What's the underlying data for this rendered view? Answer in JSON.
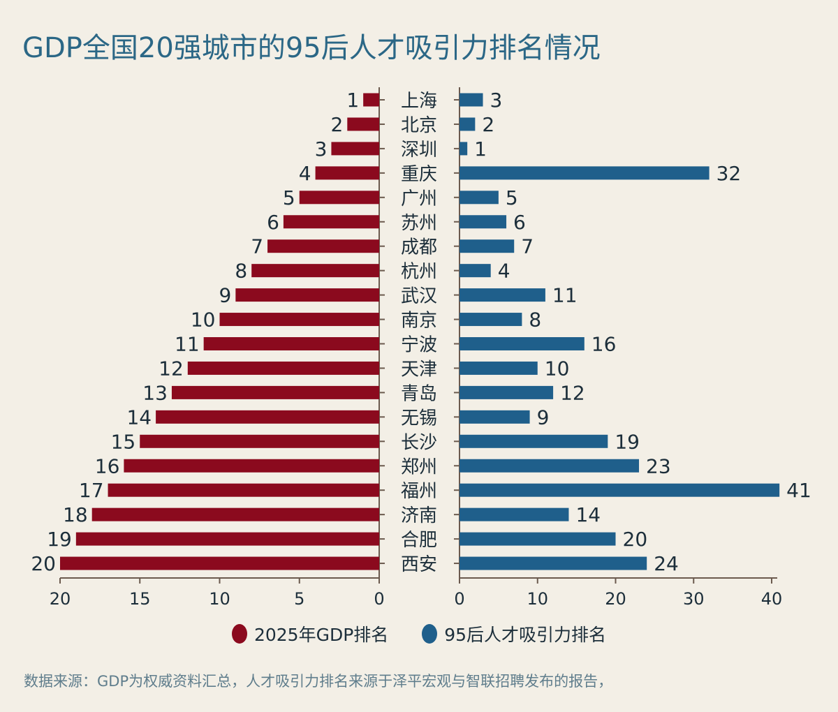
{
  "title": "GDP全国20强城市的95后人才吸引力排名情况",
  "chart_data": [
    {
      "type": "bar",
      "orientation": "horizontal",
      "direction": "leftward",
      "categories": [
        "上海",
        "北京",
        "深圳",
        "重庆",
        "广州",
        "苏州",
        "成都",
        "杭州",
        "武汉",
        "南京",
        "宁波",
        "天津",
        "青岛",
        "无锡",
        "长沙",
        "郑州",
        "福州",
        "济南",
        "合肥",
        "西安"
      ],
      "series": [
        {
          "name": "2025年GDP排名",
          "values": [
            1,
            2,
            3,
            4,
            5,
            6,
            7,
            8,
            9,
            10,
            11,
            12,
            13,
            14,
            15,
            16,
            17,
            18,
            19,
            20
          ],
          "color": "#8b0a1e"
        }
      ],
      "xlim": [
        20,
        0
      ],
      "xticks": [
        "20",
        "15",
        "10",
        "5",
        "0"
      ],
      "grid": false
    },
    {
      "type": "bar",
      "orientation": "horizontal",
      "categories": [
        "上海",
        "北京",
        "深圳",
        "重庆",
        "广州",
        "苏州",
        "成都",
        "杭州",
        "武汉",
        "南京",
        "宁波",
        "天津",
        "青岛",
        "无锡",
        "长沙",
        "郑州",
        "福州",
        "济南",
        "合肥",
        "西安"
      ],
      "series": [
        {
          "name": "95后人才吸引力排名",
          "values": [
            3,
            2,
            1,
            32,
            5,
            6,
            7,
            4,
            11,
            8,
            16,
            10,
            12,
            9,
            19,
            23,
            41,
            14,
            20,
            24
          ],
          "color": "#1f5f8b"
        }
      ],
      "xlim": [
        0,
        40
      ],
      "xticks": [
        "0",
        "10",
        "20",
        "30",
        "40"
      ],
      "grid": false
    }
  ],
  "legend": {
    "placement": "bottom",
    "items": [
      {
        "label": "2025年GDP排名",
        "color": "#8b0a1e"
      },
      {
        "label": "95后人才吸引力排名",
        "color": "#1f5f8b"
      }
    ]
  },
  "source": "数据来源：GDP为权威资料汇总，人才吸引力排名来源于泽平宏观与智联招聘发布的报告，"
}
